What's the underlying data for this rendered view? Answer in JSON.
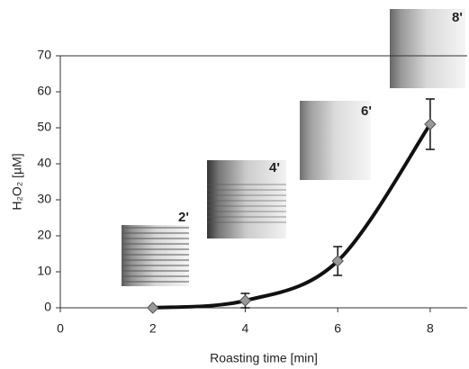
{
  "chart_data": {
    "type": "line",
    "y_label": "H₂O₂ [µM]",
    "x_label": "Roasting time [min]",
    "x": [
      2,
      4,
      6,
      8
    ],
    "series": [
      {
        "color": "#111111",
        "marker_color": "#999999",
        "values": [
          0,
          2,
          13,
          51
        ],
        "errors": [
          0,
          2,
          4,
          7
        ]
      }
    ],
    "xlim": [
      0,
      8.8
    ],
    "xticks": [
      0,
      2,
      4,
      6,
      8
    ],
    "ylim": [
      0,
      70
    ],
    "yticks": [
      0,
      10,
      20,
      30,
      40,
      50,
      60,
      70
    ],
    "annotations": [
      "2'",
      "4'",
      "6'",
      "8'"
    ]
  }
}
